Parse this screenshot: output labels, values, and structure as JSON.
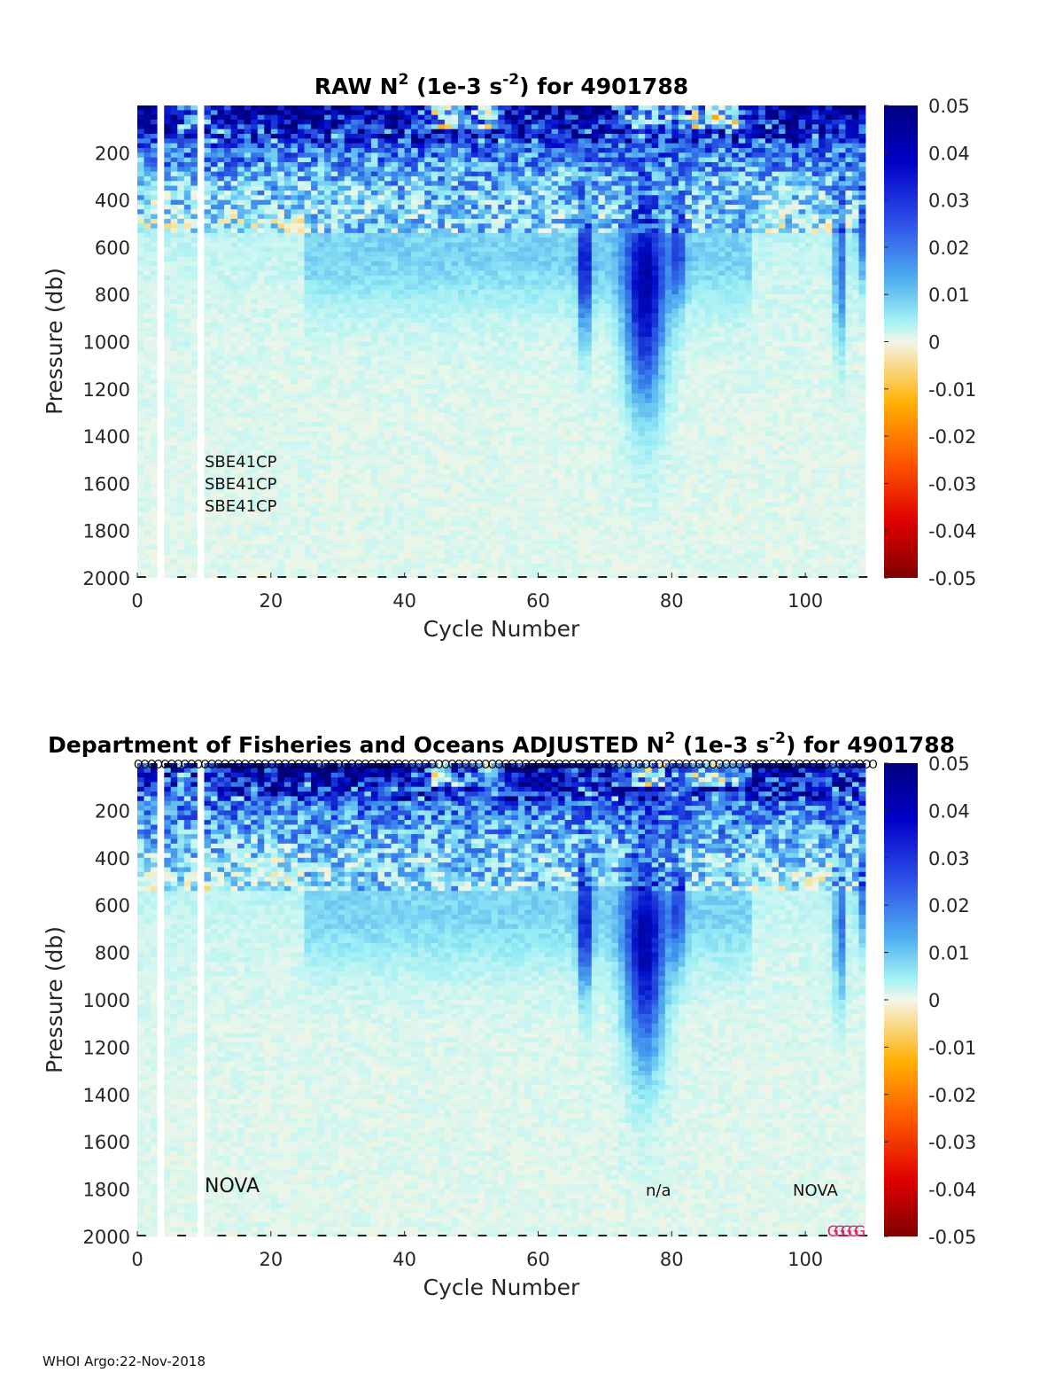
{
  "chart_data": [
    {
      "type": "heatmap",
      "title": {
        "main": "RAW N",
        "sup1": "2",
        "mid": " (1e-3 s",
        "sup2": "-2",
        "end": ") for 4901788"
      },
      "xlabel": "Cycle Number",
      "ylabel": "Pressure (db)",
      "xlim": [
        0,
        109
      ],
      "ylim": [
        2000,
        0
      ],
      "xticks": [
        "0",
        "20",
        "40",
        "60",
        "80",
        "100"
      ],
      "yticks": [
        "200",
        "400",
        "600",
        "800",
        "1000",
        "1200",
        "1400",
        "1600",
        "1800",
        "2000"
      ],
      "colorbar": {
        "range": [
          -0.05,
          0.05
        ],
        "ticks": [
          "0.05",
          "0.04",
          "0.03",
          "0.02",
          "0.01",
          "0",
          "-0.01",
          "-0.02",
          "-0.03",
          "-0.04",
          "-0.05"
        ]
      },
      "annotations": [
        "SBE41CP",
        "SBE41CP",
        "SBE41CP"
      ],
      "missing_cycles": [
        3,
        9
      ],
      "description_values": {
        "surface_layer_max": 0.05,
        "deep_layer_typical": 0.002,
        "intrusion_cycles": [
          66,
          74,
          75,
          76,
          77,
          105
        ]
      }
    },
    {
      "type": "heatmap",
      "title": {
        "main": "Department of Fisheries and Oceans  ADJUSTED N",
        "sup1": "2",
        "mid": " (1e-3 s",
        "sup2": "-2",
        "end": ") for 4901788"
      },
      "xlabel": "Cycle Number",
      "ylabel": "Pressure (db)",
      "xlim": [
        0,
        109
      ],
      "ylim": [
        2000,
        0
      ],
      "xticks": [
        "0",
        "20",
        "40",
        "60",
        "80",
        "100"
      ],
      "yticks": [
        "200",
        "400",
        "600",
        "800",
        "1000",
        "1200",
        "1400",
        "1600",
        "1800",
        "2000"
      ],
      "colorbar": {
        "range": [
          -0.05,
          0.05
        ],
        "ticks": [
          "0.05",
          "0.04",
          "0.03",
          "0.02",
          "0.01",
          "0",
          "-0.01",
          "-0.02",
          "-0.03",
          "-0.04",
          "-0.05"
        ]
      },
      "annotations": [
        "NOVA",
        "n/a",
        "NOVA"
      ],
      "qc_marker_top": "O",
      "qc_marker_bottom": "G",
      "qc_bottom_cycles": [
        105,
        106,
        107,
        108,
        109
      ]
    }
  ],
  "footer": "WHOI Argo:22-Nov-2018",
  "colors": {
    "deep_blue": "#00007f",
    "blue": "#2035d8",
    "cyan": "#9ff1f2",
    "pale": "#e3f7ee",
    "orange": "#ffa500",
    "dark_red": "#7f0000"
  }
}
